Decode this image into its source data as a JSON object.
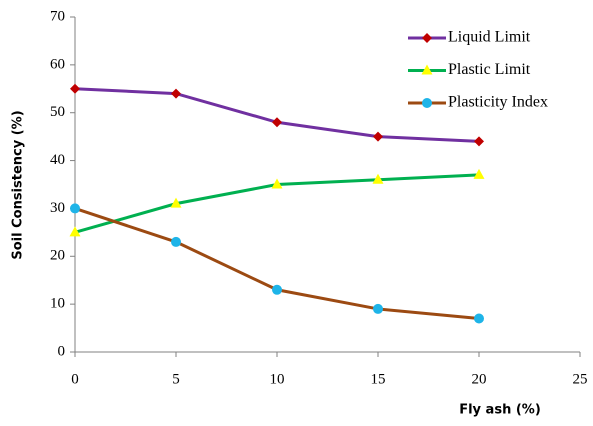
{
  "chart_data": {
    "type": "line",
    "x_label": "Fly ash (%)",
    "y_label": "Soil Consistency (%)",
    "x": [
      0,
      5,
      10,
      15,
      20
    ],
    "series": [
      {
        "name": "Liquid Limit",
        "color": "#7030a0",
        "marker": "diamond",
        "marker_color": "#c00000",
        "values": [
          55,
          54,
          48,
          45,
          44
        ]
      },
      {
        "name": "Plastic Limit",
        "color": "#00b050",
        "marker": "triangle",
        "marker_color": "#ffff00",
        "values": [
          25,
          31,
          35,
          36,
          37
        ]
      },
      {
        "name": "Plasticity Index",
        "color": "#9c4a12",
        "marker": "circle",
        "marker_color": "#1eb4e8",
        "values": [
          30,
          23,
          13,
          9,
          7
        ]
      }
    ],
    "xlim": [
      0,
      25
    ],
    "xticks": [
      0,
      5,
      10,
      15,
      20,
      25
    ],
    "ylim": [
      0,
      70
    ],
    "yticks": [
      0,
      10,
      20,
      30,
      40,
      50,
      60,
      70
    ],
    "grid": false,
    "legend": "top-right"
  }
}
